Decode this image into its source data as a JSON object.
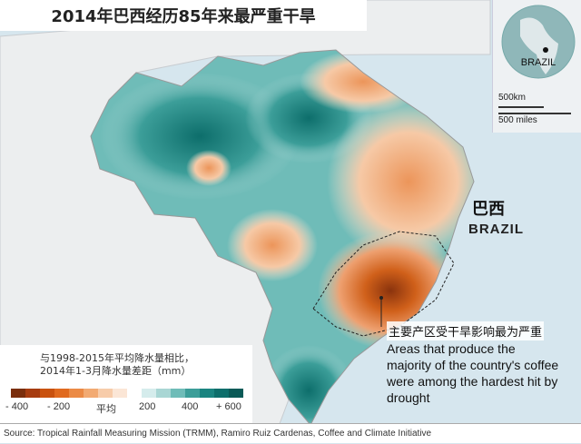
{
  "title": "2014年巴西经历85年来最严重干旱",
  "inset": {
    "country": "BRAZIL",
    "scale_km": "500km",
    "scale_miles": "500 miles"
  },
  "country_label": {
    "cn": "巴西",
    "en": "BRAZIL"
  },
  "annotation": {
    "cn": "主要产区受干旱影响最为严重",
    "en": "Areas that produce the majority of the country's coffee were among the hardest hit by drought"
  },
  "legend": {
    "title_line1": "与1998-2015年平均降水量相比，",
    "title_line2": "2014年1-3月降水量差距（mm）",
    "ticks": [
      "- 400",
      "- 200",
      "平均",
      "200",
      "400",
      "+ 600"
    ],
    "colors": [
      "#7a2e0c",
      "#a63c10",
      "#c9520f",
      "#e06a1f",
      "#eb8a45",
      "#f2aa72",
      "#f7ccaa",
      "#fbe6d6",
      "#ffffff",
      "#d5ecec",
      "#a9d6d4",
      "#6fbcb8",
      "#3c9e99",
      "#1a8480",
      "#0d6e6b",
      "#0a5a57"
    ]
  },
  "source": "Source: Tropical Rainfall Measuring Mission (TRMM), Ramiro Ruiz Cardenas, Coffee and Climate Initiative"
}
